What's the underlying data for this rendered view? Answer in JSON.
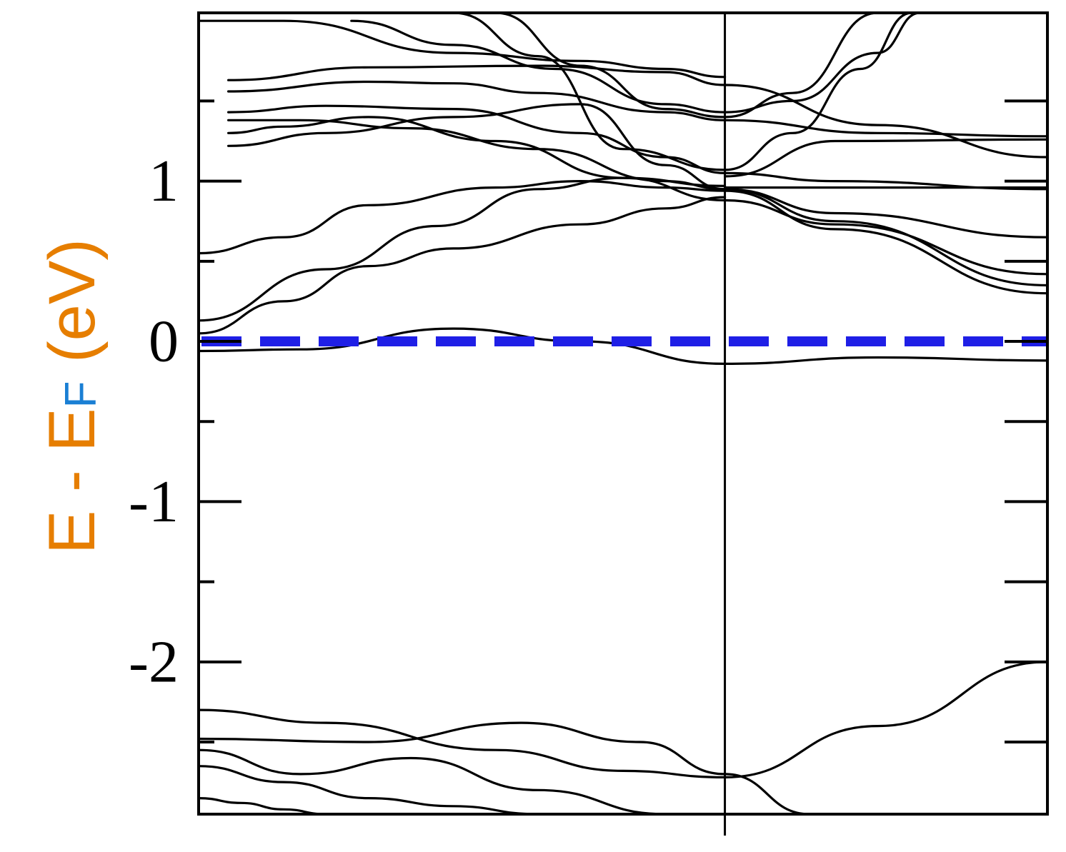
{
  "chart_data": {
    "type": "line",
    "title": "",
    "ylabel": {
      "main_before": "E - E",
      "subscript": "F",
      "main_after": " (eV)",
      "color_orange": "#e67e00",
      "color_blue": "#1a7fd4"
    },
    "xlabel": "",
    "xlim": [
      0,
      1
    ],
    "ylim": [
      -2.95,
      2.05
    ],
    "y_major_ticks": [
      -2,
      -1,
      0,
      1
    ],
    "y_tick_labels": [
      "-2",
      "-1",
      "0",
      "1"
    ],
    "y_minor_ticks": [
      -2.5,
      -1.5,
      -0.5,
      0.5,
      1.5
    ],
    "k_point_divider_x": 0.62,
    "fermi_level": {
      "y": 0,
      "color": "#1f1fe6",
      "style": "dashed"
    },
    "band_color": "#000000",
    "series": [
      {
        "x": [
          0.035,
          0.2,
          0.4,
          0.55,
          0.62,
          0.8,
          1.0
        ],
        "y": [
          1.63,
          1.71,
          1.72,
          1.68,
          1.6,
          1.35,
          1.15
        ]
      },
      {
        "x": [
          0.035,
          0.2,
          0.3,
          0.4,
          0.55,
          0.62,
          0.8,
          1.0
        ],
        "y": [
          1.56,
          1.62,
          1.61,
          1.55,
          1.43,
          1.38,
          1.3,
          1.28
        ]
      },
      {
        "x": [
          0.035,
          0.15,
          0.3,
          0.45,
          0.55,
          0.62,
          0.75,
          1.0
        ],
        "y": [
          1.43,
          1.47,
          1.45,
          1.3,
          1.15,
          1.05,
          1.0,
          0.95
        ]
      },
      {
        "x": [
          0.035,
          0.12,
          0.25,
          0.4,
          0.55,
          0.62,
          0.75,
          1.0
        ],
        "y": [
          1.38,
          1.38,
          1.33,
          1.2,
          1.0,
          0.95,
          0.8,
          0.65
        ]
      },
      {
        "x": [
          0.035,
          0.1,
          0.2,
          0.35,
          0.5,
          0.62,
          0.75,
          1.0
        ],
        "y": [
          1.3,
          1.34,
          1.4,
          1.25,
          1.02,
          0.88,
          0.73,
          0.42
        ]
      },
      {
        "x": [
          0.035,
          0.15,
          0.3,
          0.45,
          0.55,
          0.62,
          0.75,
          1.0
        ],
        "y": [
          1.22,
          1.3,
          1.4,
          1.48,
          1.1,
          0.95,
          0.75,
          0.35
        ]
      },
      {
        "x": [
          0.0,
          0.1,
          0.2,
          0.35,
          0.45,
          0.55,
          0.62,
          0.75,
          1.0
        ],
        "y": [
          0.55,
          0.65,
          0.85,
          0.96,
          1.0,
          0.96,
          0.94,
          0.7,
          0.3
        ]
      },
      {
        "x": [
          0.0,
          0.15,
          0.28,
          0.4,
          0.5,
          0.62
        ],
        "y": [
          0.13,
          0.45,
          0.72,
          0.95,
          1.02,
          0.97
        ]
      },
      {
        "x": [
          0.0,
          0.1,
          0.2,
          0.3,
          0.45,
          0.55,
          0.62
        ],
        "y": [
          0.05,
          0.25,
          0.47,
          0.58,
          0.73,
          0.83,
          0.9
        ]
      },
      {
        "x": [
          0.0,
          0.1,
          0.3,
          0.45,
          0.55,
          0.62
        ],
        "y": [
          2.0,
          2.0,
          1.8,
          1.75,
          1.7,
          1.65
        ]
      },
      {
        "x": [
          0.18,
          0.3,
          0.42,
          0.55,
          0.62,
          0.7,
          0.8,
          0.85
        ],
        "y": [
          2.0,
          1.85,
          1.7,
          1.48,
          1.43,
          1.5,
          1.8,
          2.05
        ]
      },
      {
        "x": [
          0.35,
          0.45,
          0.55,
          0.62,
          0.7,
          0.8
        ],
        "y": [
          2.05,
          1.72,
          1.45,
          1.4,
          1.55,
          2.05
        ]
      },
      {
        "x": [
          0.3,
          0.4,
          0.5,
          0.62,
          0.7,
          0.78,
          0.84
        ],
        "y": [
          2.05,
          1.78,
          1.2,
          1.07,
          1.3,
          1.7,
          2.05
        ]
      },
      {
        "x": [
          0.0,
          0.12,
          0.3,
          0.45,
          0.62
        ],
        "y": [
          -0.06,
          -0.05,
          0.08,
          0.0,
          -0.14
        ]
      },
      {
        "x": [
          0.62,
          0.8,
          1.0
        ],
        "y": [
          -0.14,
          -0.1,
          -0.12
        ]
      },
      {
        "x": [
          0.62,
          0.75,
          1.0
        ],
        "y": [
          1.03,
          1.25,
          1.26
        ]
      },
      {
        "x": [
          0.62,
          1.0
        ],
        "y": [
          0.96,
          0.96
        ]
      },
      {
        "x": [
          0.0,
          0.15,
          0.35,
          0.5,
          0.62,
          0.8,
          1.0
        ],
        "y": [
          -2.3,
          -2.38,
          -2.55,
          -2.68,
          -2.72,
          -2.4,
          -2.0
        ]
      },
      {
        "x": [
          0.0,
          0.2,
          0.38,
          0.52,
          0.62,
          0.72
        ],
        "y": [
          -2.48,
          -2.5,
          -2.38,
          -2.5,
          -2.7,
          -2.95
        ]
      },
      {
        "x": [
          0.0,
          0.12,
          0.25,
          0.4,
          0.55
        ],
        "y": [
          -2.55,
          -2.7,
          -2.6,
          -2.8,
          -2.95
        ]
      },
      {
        "x": [
          0.0,
          0.1,
          0.2,
          0.3,
          0.4
        ],
        "y": [
          -2.65,
          -2.75,
          -2.85,
          -2.9,
          -2.95
        ]
      },
      {
        "x": [
          0.0,
          0.05,
          0.1,
          0.15
        ],
        "y": [
          -2.85,
          -2.88,
          -2.92,
          -2.95
        ]
      }
    ]
  }
}
